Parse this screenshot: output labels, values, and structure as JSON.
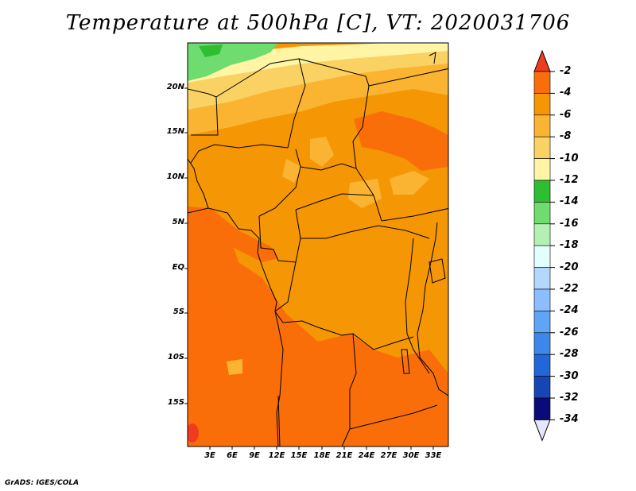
{
  "title": "Temperature at 500hPa [C], VT: 2020031706",
  "credit": "GrADS: IGES/COLA",
  "lat_labels": [
    "20N",
    "15N",
    "10N",
    "5N",
    "EQ",
    "5S",
    "10S",
    "15S"
  ],
  "lon_labels": [
    "3E",
    "6E",
    "9E",
    "12E",
    "15E",
    "18E",
    "21E",
    "24E",
    "27E",
    "30E",
    "33E"
  ],
  "colorbar": {
    "labels": [
      "-2",
      "-4",
      "-6",
      "-8",
      "-10",
      "-12",
      "-14",
      "-16",
      "-18",
      "-20",
      "-22",
      "-24",
      "-26",
      "-28",
      "-30",
      "-32",
      "-34"
    ],
    "colors": [
      "#f03c1e",
      "#fa6e0a",
      "#f59605",
      "#fab432",
      "#fad264",
      "#fff5a5",
      "#2dbe32",
      "#6edc6e",
      "#b4f0b4",
      "#e1ffff",
      "#b4d7ff",
      "#8cbdff",
      "#5fa5f5",
      "#3c87eb",
      "#2366d7",
      "#1446b4",
      "#0a0a78"
    ],
    "over_color": "#f03c1e",
    "under_color": "#e6e6ff"
  },
  "region": {
    "lon_min": 0,
    "lon_max": 35,
    "lat_min": -20,
    "lat_max": 24
  }
}
